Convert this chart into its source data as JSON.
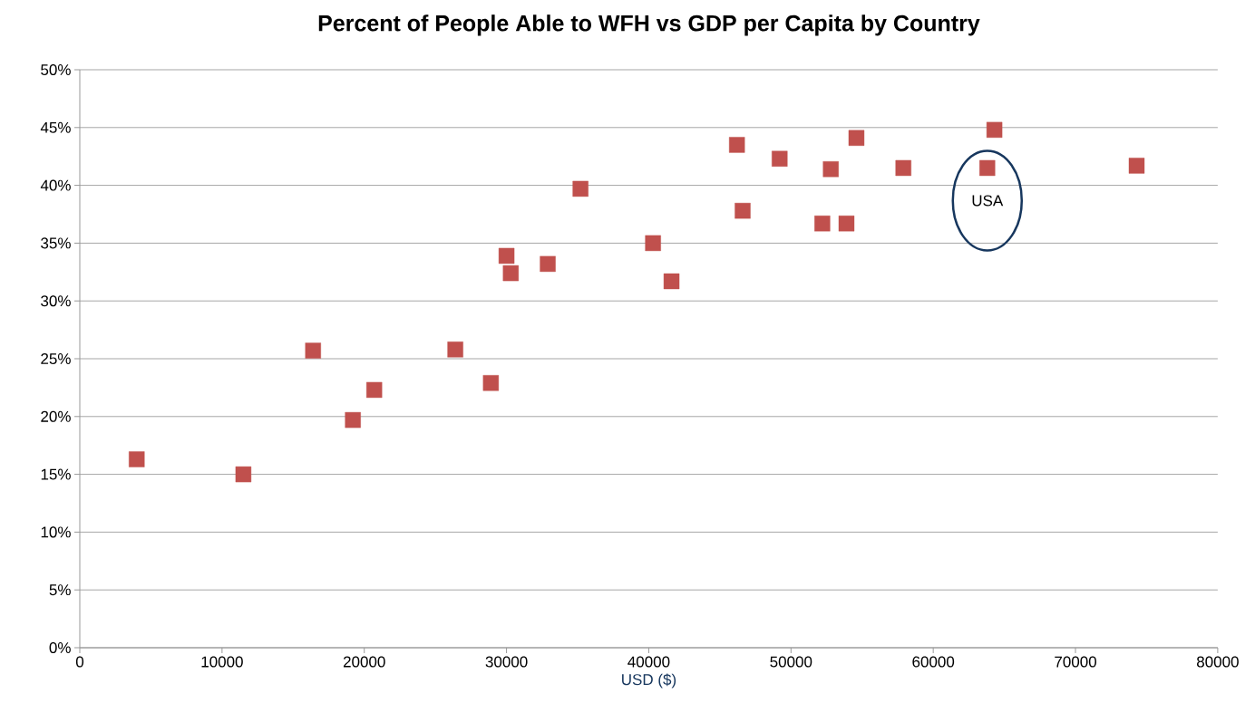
{
  "chart_data": {
    "type": "scatter",
    "title": "Percent of People Able to WFH vs GDP per Capita by Country",
    "xlabel": "USD ($)",
    "x": [
      4000,
      11500,
      16400,
      19200,
      20700,
      26400,
      28900,
      30000,
      30300,
      32900,
      35200,
      40300,
      41600,
      46200,
      46600,
      49200,
      52800,
      52200,
      53900,
      54600,
      57900,
      63800,
      64300,
      74300
    ],
    "values": [
      16.3,
      15.0,
      25.7,
      19.7,
      22.3,
      25.8,
      22.9,
      33.9,
      32.4,
      33.2,
      39.7,
      35.0,
      31.7,
      43.5,
      37.8,
      42.3,
      41.4,
      36.7,
      36.7,
      44.1,
      41.5,
      41.5,
      44.8,
      41.7
    ],
    "color": "#c0504d",
    "marker": "square",
    "grid": "y",
    "xlim": [
      0,
      80000
    ],
    "xticks": [
      0,
      10000,
      20000,
      30000,
      40000,
      50000,
      60000,
      70000,
      80000
    ],
    "ylim": [
      0,
      50
    ],
    "yticks": [
      {
        "value": 0,
        "label": "0%"
      },
      {
        "value": 5,
        "label": "5%"
      },
      {
        "value": 10,
        "label": "10%"
      },
      {
        "value": 15,
        "label": "15%"
      },
      {
        "value": 20,
        "label": "20%"
      },
      {
        "value": 25,
        "label": "25%"
      },
      {
        "value": 30,
        "label": "30%"
      },
      {
        "value": 35,
        "label": "35%"
      },
      {
        "value": 40,
        "label": "40%"
      },
      {
        "value": 45,
        "label": "45%"
      },
      {
        "value": 50,
        "label": "50%"
      }
    ],
    "annotations": [
      {
        "text": "USA",
        "x": 63800,
        "y": 41.5
      }
    ]
  }
}
